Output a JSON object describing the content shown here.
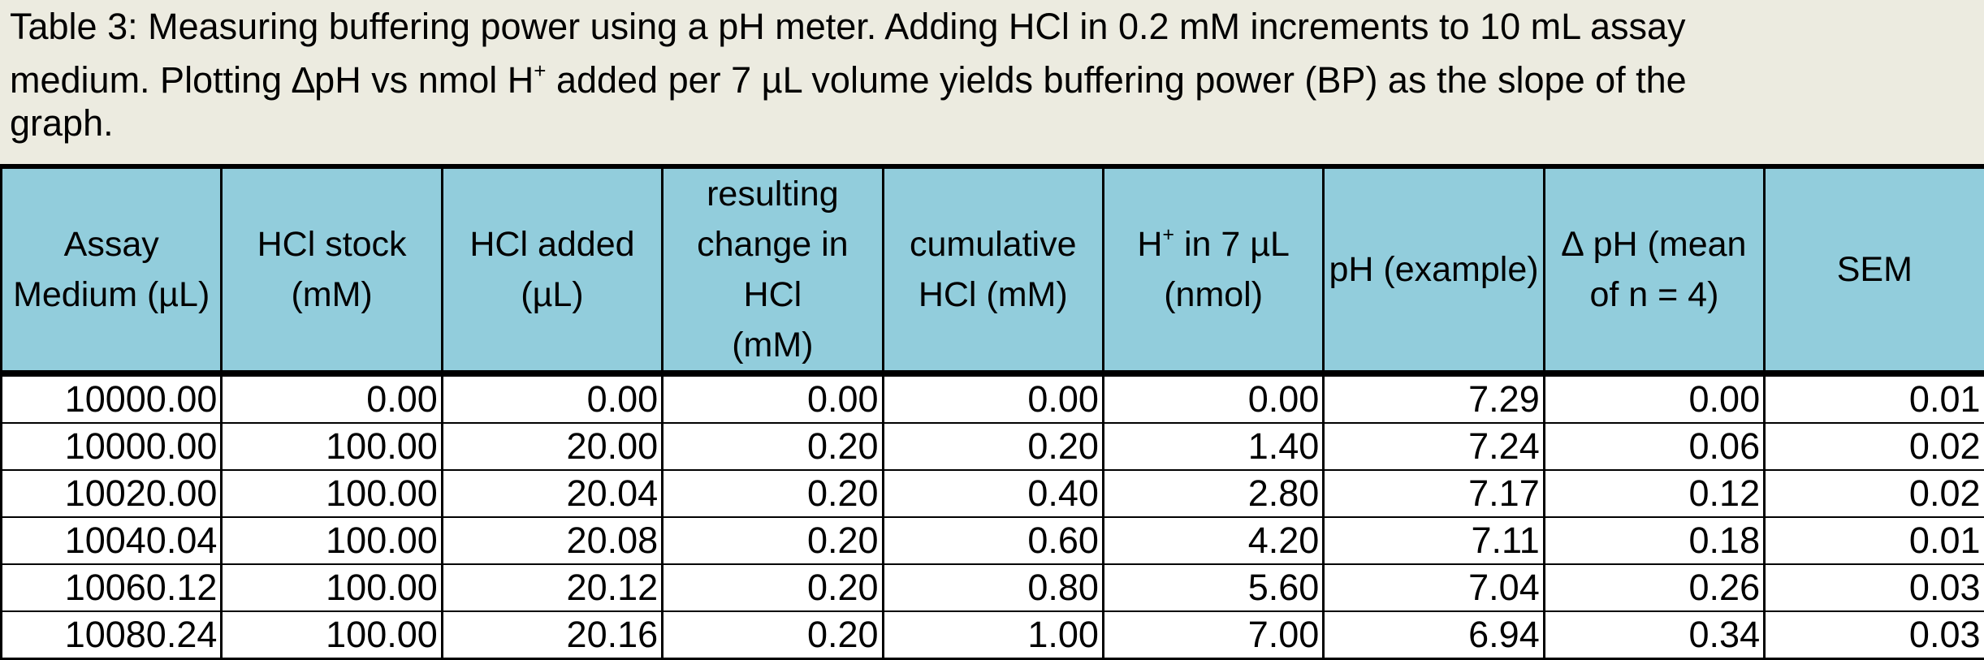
{
  "caption": {
    "line1": "Table 3: Measuring buffering power using a pH meter. Adding HCl in 0.2 mM increments to 10 mL assay",
    "line2_before_sup": "medium. Plotting ∆pH vs nmol H",
    "line2_sup": "+",
    "line2_after_sup": " added per 7 µL volume yields buffering power (BP) as the slope of the",
    "line3": "graph."
  },
  "table": {
    "headers": [
      {
        "line1": "Assay",
        "line2": "Medium (µL)"
      },
      {
        "line1": "HCl stock",
        "line2": "(mM)"
      },
      {
        "line1": "HCl added",
        "line2": "(µL)"
      },
      {
        "line1": "resulting",
        "line2": "change in HCl",
        "line3": "(mM)"
      },
      {
        "line1": "cumulative",
        "line2": "HCl (mM)"
      },
      {
        "line1_before_sup": "H",
        "line1_sup": "+",
        "line1_after_sup": " in 7 µL",
        "line2": "(nmol)"
      },
      {
        "line1": "pH (example)"
      },
      {
        "line1": "∆ pH (mean",
        "line2": "of n = 4)"
      },
      {
        "line1": "SEM"
      }
    ],
    "rows": [
      [
        "10000.00",
        "0.00",
        "0.00",
        "0.00",
        "0.00",
        "0.00",
        "7.29",
        "0.00",
        "0.01"
      ],
      [
        "10000.00",
        "100.00",
        "20.00",
        "0.20",
        "0.20",
        "1.40",
        "7.24",
        "0.06",
        "0.02"
      ],
      [
        "10020.00",
        "100.00",
        "20.04",
        "0.20",
        "0.40",
        "2.80",
        "7.17",
        "0.12",
        "0.02"
      ],
      [
        "10040.04",
        "100.00",
        "20.08",
        "0.20",
        "0.60",
        "4.20",
        "7.11",
        "0.18",
        "0.01"
      ],
      [
        "10060.12",
        "100.00",
        "20.12",
        "0.20",
        "0.80",
        "5.60",
        "7.04",
        "0.26",
        "0.03"
      ],
      [
        "10080.24",
        "100.00",
        "20.16",
        "0.20",
        "1.00",
        "7.00",
        "6.94",
        "0.34",
        "0.03"
      ]
    ]
  },
  "colors": {
    "caption_background": "#ecebe0",
    "header_background": "#92cddc"
  }
}
